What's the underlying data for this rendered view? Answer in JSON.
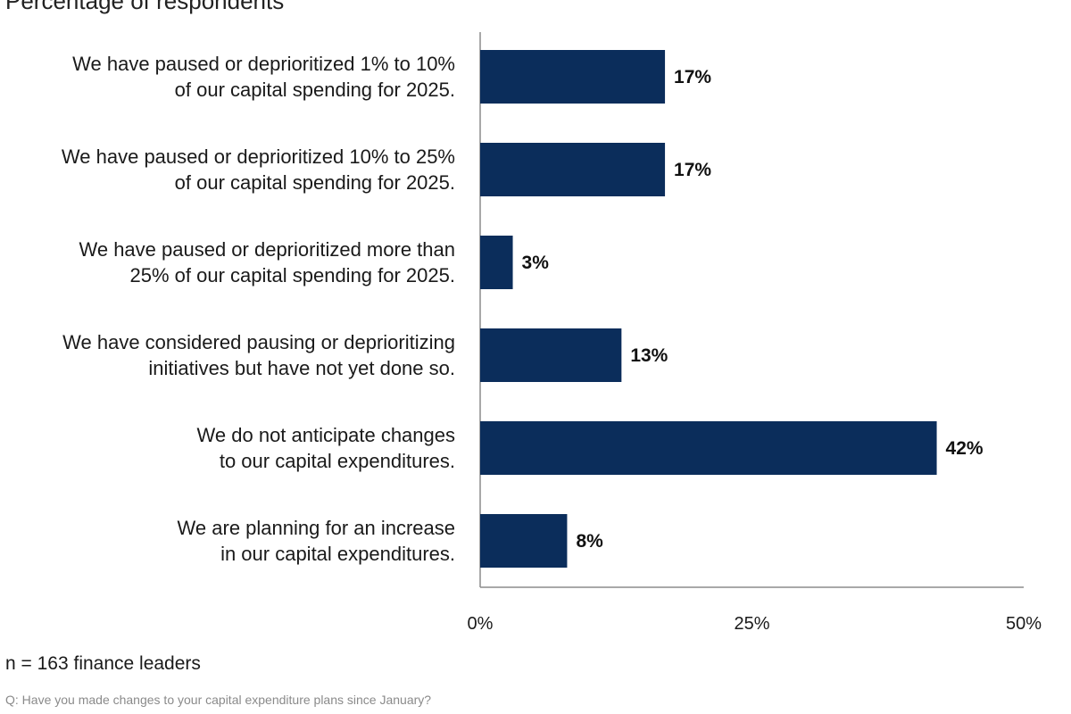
{
  "chart_data": {
    "type": "bar",
    "orientation": "horizontal",
    "subtitle": "Percentage of respondents",
    "categories": [
      [
        "We have paused or deprioritized 1% to 10%",
        "of our capital spending for 2025."
      ],
      [
        "We have paused or deprioritized 10% to 25%",
        "of our capital spending for 2025."
      ],
      [
        "We have paused or deprioritized more than",
        "25% of our capital spending for 2025."
      ],
      [
        "We have considered pausing or deprioritizing",
        "initiatives but have not yet done so."
      ],
      [
        "We do not anticipate changes",
        "to our capital expenditures."
      ],
      [
        "We are planning for an increase",
        "in our capital expenditures."
      ]
    ],
    "values": [
      17,
      17,
      3,
      13,
      42,
      8
    ],
    "value_labels": [
      "17%",
      "17%",
      "3%",
      "13%",
      "42%",
      "8%"
    ],
    "xlim": [
      0,
      50
    ],
    "x_ticks": [
      0,
      25,
      50
    ],
    "x_tick_labels": [
      "0%",
      "25%",
      "50%"
    ],
    "grid": false,
    "bar_color": "#0b2d5b"
  },
  "notes": {
    "sample": "n = 163 finance leaders",
    "question": "Q: Have you made changes to your capital expenditure plans since January?"
  }
}
